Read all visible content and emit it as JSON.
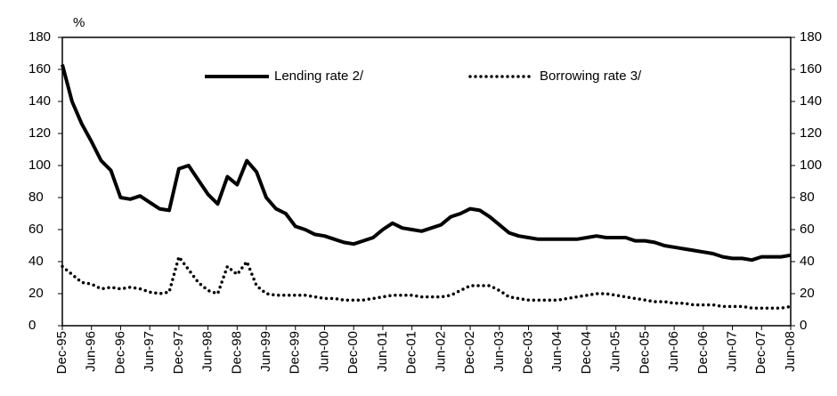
{
  "chart_data": {
    "type": "line",
    "y_label": "%",
    "categories": [
      "Dec-95",
      null,
      null,
      "Jun-96",
      null,
      null,
      "Dec-96",
      null,
      null,
      "Jun-97",
      null,
      null,
      "Dec-97",
      null,
      null,
      "Jun-98",
      null,
      null,
      "Dec-98",
      null,
      null,
      "Jun-99",
      null,
      null,
      "Dec-99",
      null,
      null,
      "Jun-00",
      null,
      null,
      "Dec-00",
      null,
      null,
      "Jun-01",
      null,
      null,
      "Dec-01",
      null,
      null,
      "Jun-02",
      null,
      null,
      "Dec-02",
      null,
      null,
      "Jun-03",
      null,
      null,
      "Dec-03",
      null,
      null,
      "Jun-04",
      null,
      null,
      "Dec-04",
      null,
      null,
      "Jun-05",
      null,
      null,
      "Dec-05",
      null,
      null,
      "Jun-06",
      null,
      null,
      "Dec-06",
      null,
      null,
      "Jun-07",
      null,
      null,
      "Dec-07",
      null,
      null,
      "Jun-08"
    ],
    "series": [
      {
        "name": "Lending rate 2/",
        "color": "#000000",
        "style": "solid",
        "values": [
          163,
          140,
          126,
          115,
          103,
          97,
          80,
          79,
          81,
          77,
          73,
          72,
          98,
          100,
          91,
          82,
          76,
          93,
          88,
          103,
          96,
          80,
          73,
          70,
          62,
          60,
          57,
          56,
          54,
          52,
          51,
          53,
          55,
          60,
          64,
          61,
          60,
          59,
          61,
          63,
          68,
          70,
          73,
          72,
          68,
          63,
          58,
          56,
          55,
          54,
          54,
          54,
          54,
          54,
          55,
          56,
          55,
          55,
          55,
          53,
          53,
          52,
          50,
          49,
          48,
          47,
          46,
          45,
          43,
          42,
          42,
          41,
          43,
          43,
          43,
          44
        ]
      },
      {
        "name": "Borrowing rate 3/",
        "color": "#000000",
        "style": "dotted",
        "values": [
          37,
          32,
          27,
          26,
          23,
          24,
          23,
          24,
          23,
          21,
          20,
          21,
          43,
          35,
          27,
          22,
          20,
          37,
          32,
          40,
          25,
          20,
          19,
          19,
          19,
          19,
          18,
          17,
          17,
          16,
          16,
          16,
          17,
          18,
          19,
          19,
          19,
          18,
          18,
          18,
          19,
          22,
          25,
          25,
          25,
          22,
          18,
          17,
          16,
          16,
          16,
          16,
          17,
          18,
          19,
          20,
          20,
          19,
          18,
          17,
          16,
          15,
          15,
          14,
          14,
          13,
          13,
          13,
          12,
          12,
          12,
          11,
          11,
          11,
          11,
          12
        ]
      }
    ],
    "ylim": [
      0,
      180
    ],
    "yticks": [
      0,
      20,
      40,
      60,
      80,
      100,
      120,
      140,
      160,
      180
    ],
    "right_axis": true
  }
}
